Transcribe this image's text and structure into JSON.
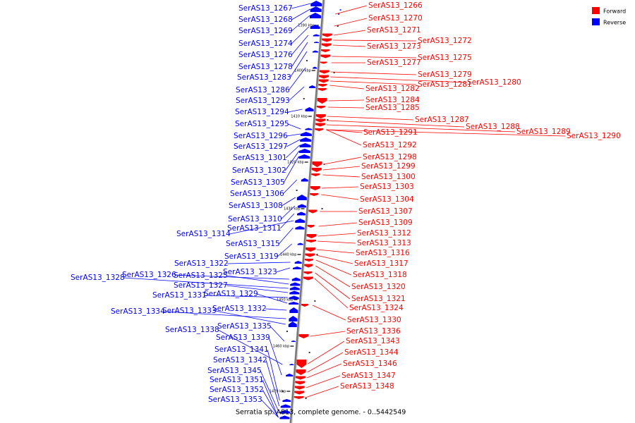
{
  "caption": "Serratia sp. AS13, complete genome. - 0..5442549",
  "legend": [
    {
      "label": "Forward",
      "color": "#ff0000"
    },
    {
      "label": "Reverse",
      "color": "#0000ff"
    }
  ],
  "colors": {
    "forward": "#ff0000",
    "reverse": "#0000ff",
    "backbone": "#777777"
  },
  "ticks": [
    "1390 kbp",
    "1400 kbp",
    "1410 kbp",
    "1420 kbp",
    "1430 kbp",
    "1440 kbp",
    "1450 kbp",
    "1460 kbp",
    "1470 kbp"
  ],
  "reverse_genes": [
    "SerAS13_1267",
    "SerAS13_1268",
    "SerAS13_1269",
    "SerAS13_1274",
    "SerAS13_1276",
    "SerAS13_1278",
    "SerAS13_1283",
    "SerAS13_1286",
    "SerAS13_1293",
    "SerAS13_1294",
    "SerAS13_1295",
    "SerAS13_1296",
    "SerAS13_1297",
    "SerAS13_1301",
    "SerAS13_1302",
    "SerAS13_1305",
    "SerAS13_1306",
    "SerAS13_1308",
    "SerAS13_1310",
    "SerAS13_1311",
    "SerAS13_1314",
    "SerAS13_1315",
    "SerAS13_1319",
    "SerAS13_1322",
    "SerAS13_1323",
    "SerAS13_1326",
    "SerAS13_1325",
    "SerAS13_1328",
    "SerAS13_1327",
    "SerAS13_1331",
    "SerAS13_1329",
    "SerAS13_1332",
    "SerAS13_1334",
    "SerAS13_1333",
    "SerAS13_1335",
    "SerAS13_1338",
    "SerAS13_1339",
    "SerAS13_1341",
    "SerAS13_1342",
    "SerAS13_1345",
    "SerAS13_1351",
    "SerAS13_1352",
    "SerAS13_1353"
  ],
  "forward_genes": [
    "SerAS13_1266",
    "SerAS13_1270",
    "SerAS13_1271",
    "SerAS13_1272",
    "SerAS13_1273",
    "SerAS13_1275",
    "SerAS13_1277",
    "SerAS13_1279",
    "SerAS13_1280",
    "SerAS13_1281",
    "SerAS13_1282",
    "SerAS13_1284",
    "SerAS13_1285",
    "SerAS13_1287",
    "SerAS13_1288",
    "SerAS13_1289",
    "SerAS13_1290",
    "SerAS13_1291",
    "SerAS13_1292",
    "SerAS13_1298",
    "SerAS13_1299",
    "SerAS13_1300",
    "SerAS13_1303",
    "SerAS13_1304",
    "SerAS13_1307",
    "SerAS13_1309",
    "SerAS13_1312",
    "SerAS13_1313",
    "SerAS13_1316",
    "SerAS13_1317",
    "SerAS13_1318",
    "SerAS13_1320",
    "SerAS13_1321",
    "SerAS13_1324",
    "SerAS13_1330",
    "SerAS13_1336",
    "SerAS13_1343",
    "SerAS13_1344",
    "SerAS13_1346",
    "SerAS13_1347",
    "SerAS13_1348"
  ]
}
